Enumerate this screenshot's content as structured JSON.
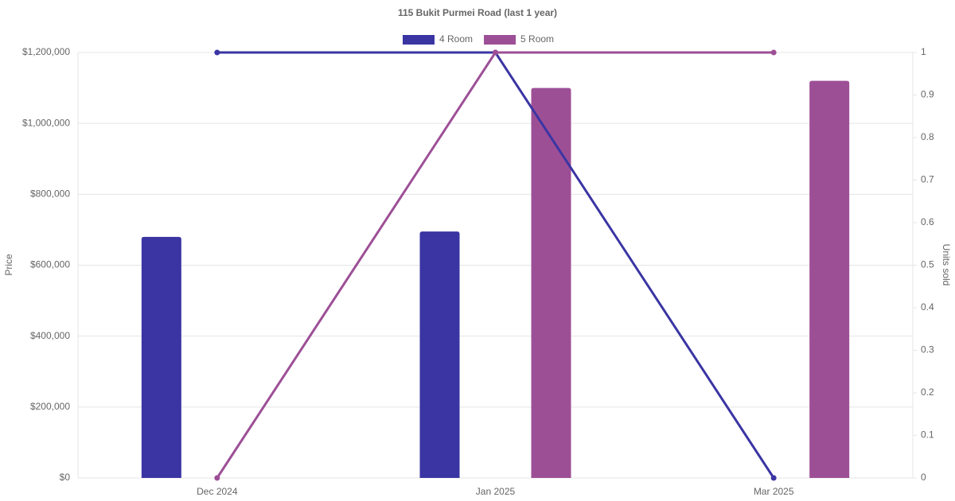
{
  "chart_data": {
    "type": "bar",
    "title": "115 Bukit Purmei Road (last 1 year)",
    "y_label": "Price",
    "y2_label": "Units sold",
    "categories": [
      "Dec 2024",
      "Jan 2025",
      "Mar 2025"
    ],
    "series": [
      {
        "name": "4 Room",
        "color": "#3a35a3",
        "values": [
          680000,
          695000,
          null
        ],
        "units": [
          1,
          1,
          0
        ]
      },
      {
        "name": "5 Room",
        "color": "#9d4f96",
        "values": [
          null,
          1100000,
          1120000
        ],
        "units": [
          0,
          1,
          1
        ]
      }
    ],
    "ylim": [
      0,
      1200000
    ],
    "yticks": [
      {
        "value": 0,
        "label": "$0"
      },
      {
        "value": 200000,
        "label": "$200,000"
      },
      {
        "value": 400000,
        "label": "$400,000"
      },
      {
        "value": 600000,
        "label": "$600,000"
      },
      {
        "value": 800000,
        "label": "$800,000"
      },
      {
        "value": 1000000,
        "label": "$1,000,000"
      },
      {
        "value": 1200000,
        "label": "$1,200,000"
      }
    ],
    "y2lim": [
      0,
      1
    ],
    "y2ticks": [
      0,
      0.1,
      0.2,
      0.3,
      0.4,
      0.5,
      0.6,
      0.7,
      0.8,
      0.9,
      1
    ],
    "grid": true
  }
}
